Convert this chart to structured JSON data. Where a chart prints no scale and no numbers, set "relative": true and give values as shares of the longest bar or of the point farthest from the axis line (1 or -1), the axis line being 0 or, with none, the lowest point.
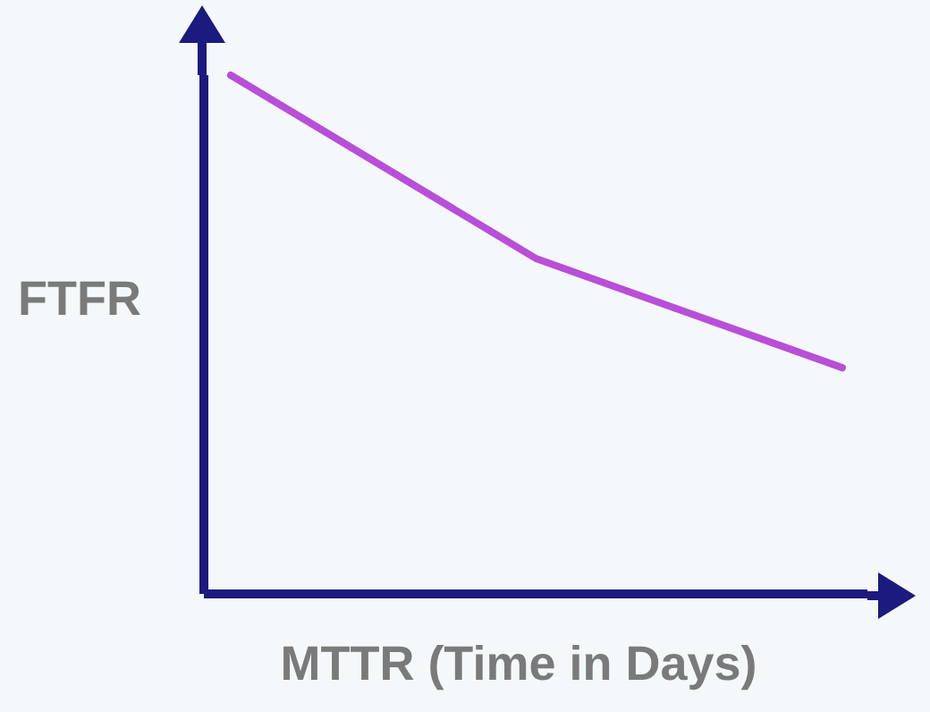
{
  "chart_data": {
    "type": "line",
    "xlabel": "MTTR (Time in Days)",
    "ylabel": "FTFR",
    "relative": true,
    "categories": [
      null,
      null,
      null
    ],
    "tick_labels": false,
    "grid": false,
    "legend": false,
    "marker": "none",
    "line_style": "solid",
    "series": [
      {
        "color": "#b84fd8",
        "values": [
          1,
          0.646,
          0.436
        ]
      }
    ]
  }
}
